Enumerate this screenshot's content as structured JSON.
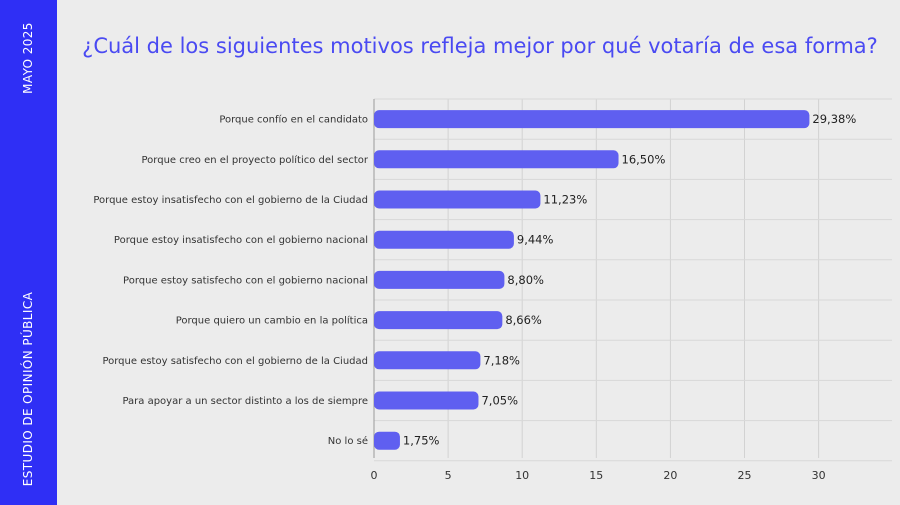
{
  "sidebar": {
    "date": "MAYO 2025",
    "org": "ESTUDIO DE OPINIÓN PÚBLICA",
    "color": "#2f2ff5"
  },
  "chart_data": {
    "type": "bar",
    "orientation": "horizontal",
    "title": "¿Cuál de los siguientes motivos refleja mejor por qué votaría de esa forma?",
    "categories": [
      "Porque confío en el candidato",
      "Porque creo en el proyecto político del sector",
      "Porque estoy insatisfecho con el gobierno de la Ciudad",
      "Porque estoy insatisfecho con el gobierno nacional",
      "Porque estoy satisfecho con el gobierno nacional",
      "Porque quiero un cambio en la política",
      "Porque estoy satisfecho con el gobierno de la Ciudad",
      "Para apoyar a un sector distinto a los de siempre",
      "No lo sé"
    ],
    "values": [
      29.38,
      16.5,
      11.23,
      9.44,
      8.8,
      8.66,
      7.18,
      7.05,
      1.75
    ],
    "value_labels": [
      "29,38%",
      "16,50%",
      "11,23%",
      "9,44%",
      "8,80%",
      "8,66%",
      "7,18%",
      "7,05%",
      "1,75%"
    ],
    "xticks": [
      0,
      5,
      10,
      15,
      20,
      25,
      30
    ],
    "xlim": [
      0,
      35
    ],
    "grid": true,
    "bar_color": "#5f5ff0"
  }
}
